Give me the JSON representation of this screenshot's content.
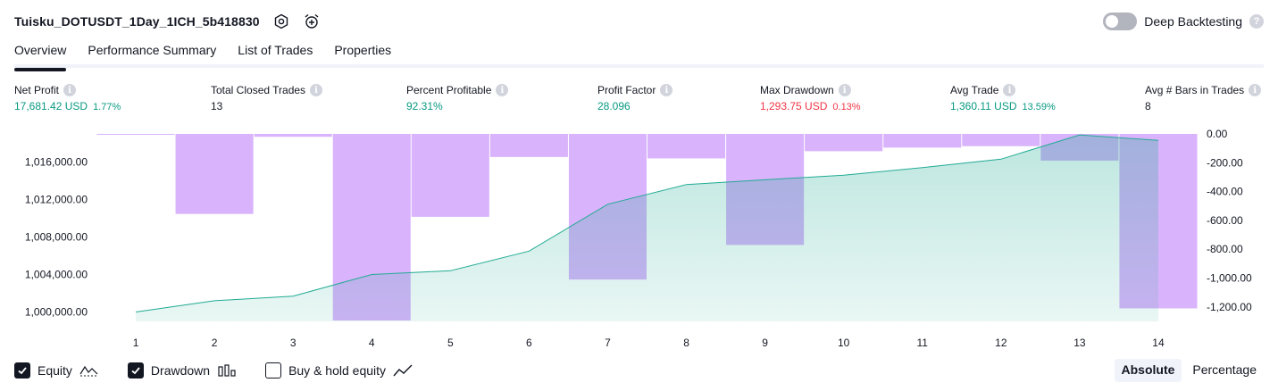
{
  "header": {
    "strategy_name": "Tuisku_DOTUSDT_1Day_1ICH_5b418830",
    "settings_icon": "gear-hexagon-icon",
    "alert_icon": "alarm-clock-plus-icon"
  },
  "deep_backtesting": {
    "label": "Deep Backtesting",
    "enabled": false,
    "help_glyph": "?"
  },
  "tabs": [
    {
      "label": "Overview",
      "active": true
    },
    {
      "label": "Performance Summary",
      "active": false
    },
    {
      "label": "List of Trades",
      "active": false
    },
    {
      "label": "Properties",
      "active": false
    }
  ],
  "metrics": [
    {
      "label": "Net Profit",
      "value": "17,681.42 USD",
      "pct": "1.77%",
      "color": "#089981"
    },
    {
      "label": "Total Closed Trades",
      "value": "13",
      "pct": "",
      "color": "#131722"
    },
    {
      "label": "Percent Profitable",
      "value": "92.31%",
      "pct": "",
      "color": "#089981"
    },
    {
      "label": "Profit Factor",
      "value": "28.096",
      "pct": "",
      "color": "#089981"
    },
    {
      "label": "Max Drawdown",
      "value": "1,293.75 USD",
      "pct": "0.13%",
      "color": "#f23645"
    },
    {
      "label": "Avg Trade",
      "value": "1,360.11 USD",
      "pct": "13.59%",
      "color": "#089981"
    },
    {
      "label": "Avg # Bars in Trades",
      "value": "8",
      "pct": "",
      "color": "#131722"
    }
  ],
  "info_glyph": "i",
  "chart_data": {
    "type": "line+bar",
    "x": [
      1,
      2,
      3,
      4,
      5,
      6,
      7,
      8,
      9,
      10,
      11,
      12,
      13,
      14
    ],
    "series": [
      {
        "axis": "left",
        "kind": "area-line",
        "color": "#22ab94",
        "values": [
          1000000,
          1001200,
          1001700,
          1004000,
          1004400,
          1006500,
          1011500,
          1013600,
          1014100,
          1014600,
          1015400,
          1016300,
          1018900,
          1018300
        ]
      },
      {
        "axis": "right",
        "kind": "bar",
        "color": "#d9b3fb",
        "values": [
          -5,
          -555,
          -20,
          -1293.75,
          -575,
          -160,
          -1010,
          -170,
          -770,
          -120,
          -95,
          -85,
          -185,
          -1210
        ]
      }
    ],
    "left_axis": {
      "ticks": [
        "1,016,000.00",
        "1,012,000.00",
        "1,008,000.00",
        "1,004,000.00",
        "1,000,000.00"
      ],
      "tick_values": [
        1016000,
        1012000,
        1008000,
        1004000,
        1000000
      ],
      "range": [
        999000,
        1019000
      ]
    },
    "right_axis": {
      "ticks": [
        "0.00",
        "-200.00",
        "-400.00",
        "-600.00",
        "-800.00",
        "-1,000.00",
        "-1,200.00"
      ],
      "tick_values": [
        0,
        -200,
        -400,
        -600,
        -800,
        -1000,
        -1200
      ],
      "range": [
        -1300,
        0
      ]
    },
    "x_labels": [
      "1",
      "2",
      "3",
      "4",
      "5",
      "6",
      "7",
      "8",
      "9",
      "10",
      "11",
      "12",
      "13",
      "14"
    ]
  },
  "footer": {
    "options": [
      {
        "label": "Equity",
        "checked": true,
        "icon": "equity-line-icon"
      },
      {
        "label": "Drawdown",
        "checked": true,
        "icon": "drawdown-bars-icon"
      },
      {
        "label": "Buy & hold equity",
        "checked": false,
        "icon": "buy-hold-line-icon"
      }
    ],
    "modes": [
      {
        "label": "Absolute",
        "active": true
      },
      {
        "label": "Percentage",
        "active": false
      }
    ]
  }
}
